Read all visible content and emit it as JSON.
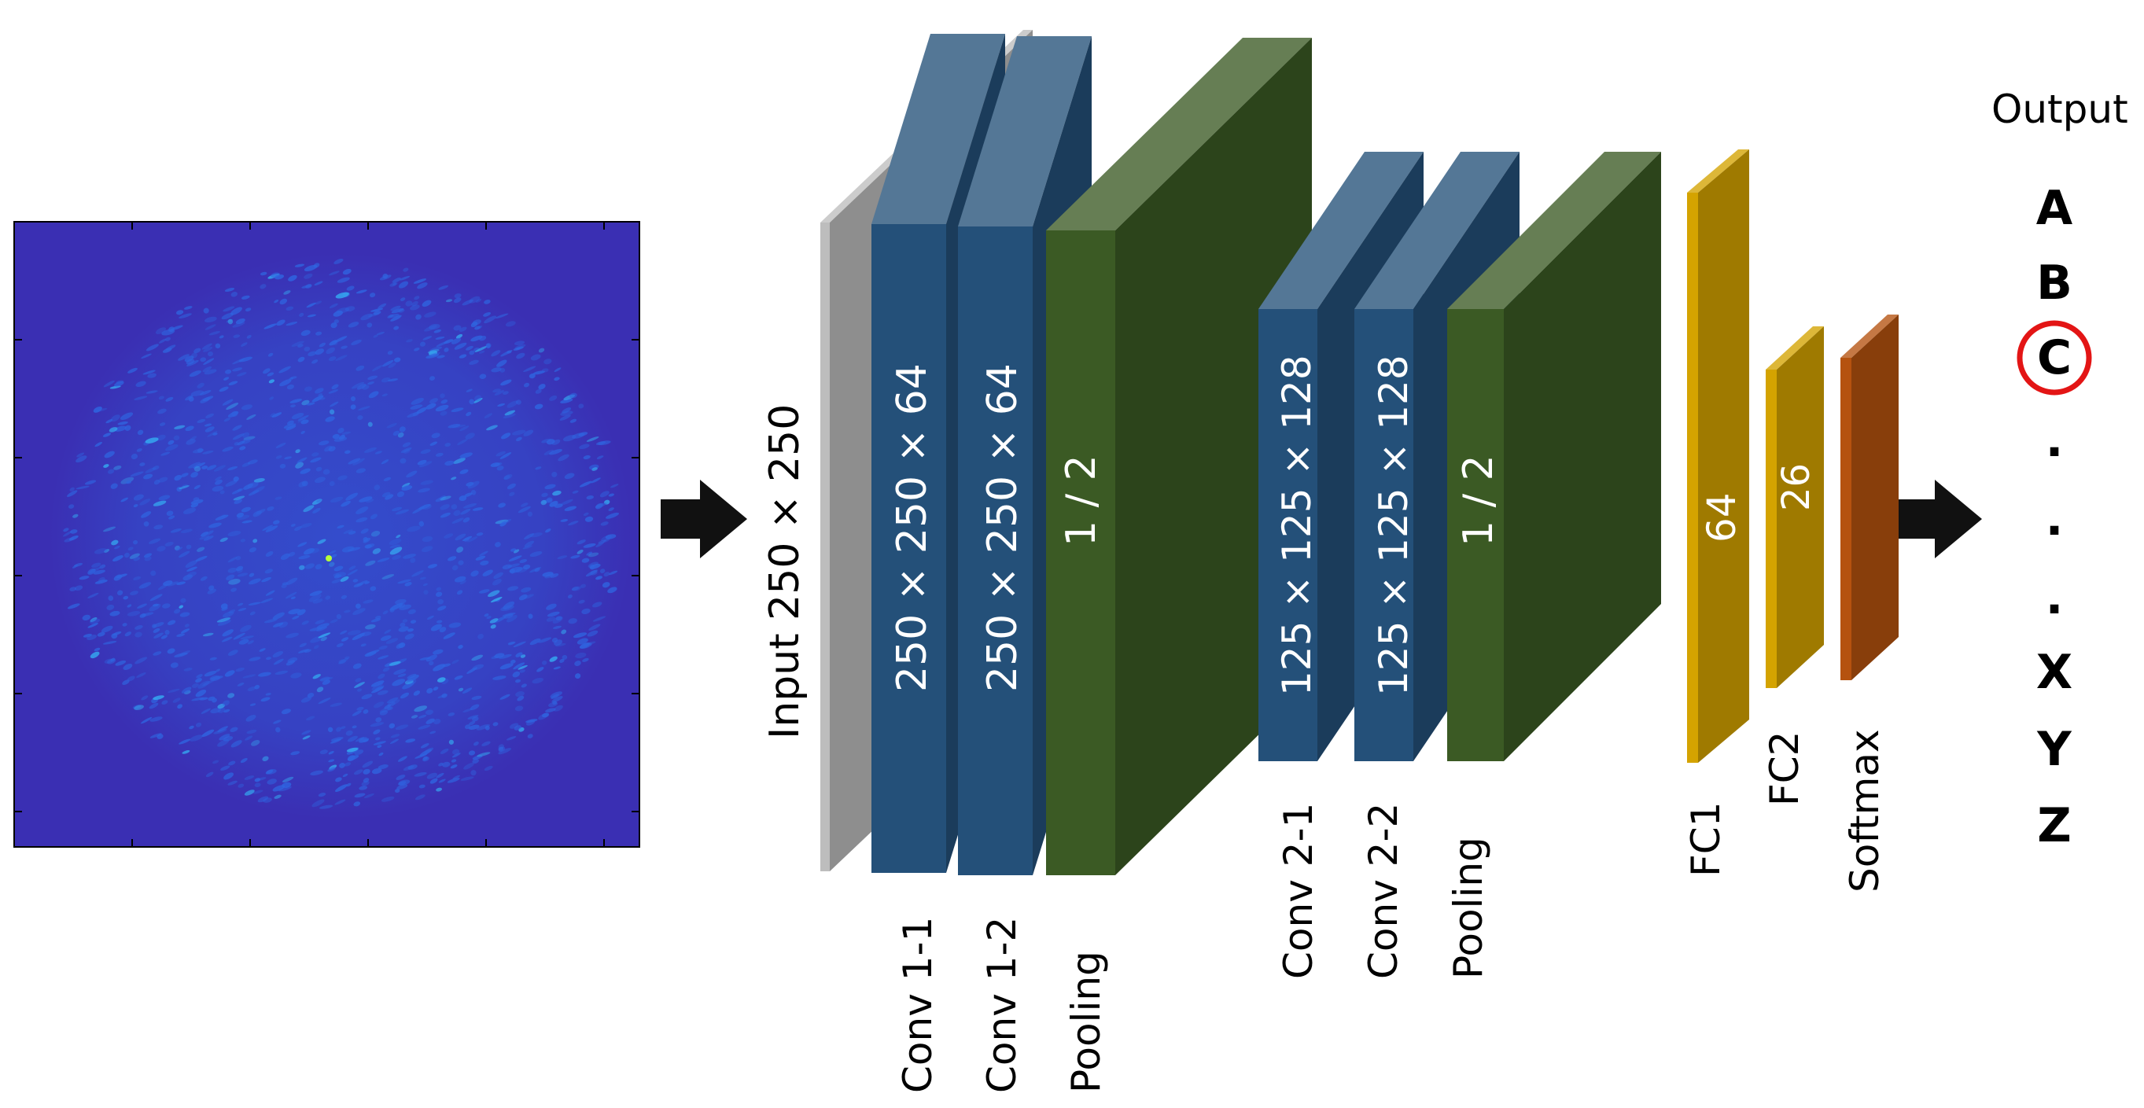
{
  "input_image": {
    "colors": {
      "background": "#3a2fb3",
      "frame": "#000000",
      "speckle": "#2f64e0",
      "hotspot": "#b6ff3a"
    }
  },
  "layers": [
    {
      "id": "input",
      "block_text": "",
      "label": "Input 250 × 250",
      "color": "#bdbdbd"
    },
    {
      "id": "conv1-1",
      "block_text": "250 × 250 × 64",
      "label": "Conv 1-1",
      "color": "#245079"
    },
    {
      "id": "conv1-2",
      "block_text": "250 × 250 × 64",
      "label": "Conv 1-2",
      "color": "#245079"
    },
    {
      "id": "pool1",
      "block_text": "1 / 2",
      "label": "Pooling",
      "color": "#3b5a24"
    },
    {
      "id": "conv2-1",
      "block_text": "125 × 125 × 128",
      "label": "Conv 2-1",
      "color": "#245079"
    },
    {
      "id": "conv2-2",
      "block_text": "125 × 125 × 128",
      "label": "Conv 2-2",
      "color": "#245079"
    },
    {
      "id": "pool2",
      "block_text": "1 / 2",
      "label": "Pooling",
      "color": "#3b5a24"
    },
    {
      "id": "fc1",
      "block_text": "64",
      "label": "FC1",
      "color": "#d4a300"
    },
    {
      "id": "fc2",
      "block_text": "26",
      "label": "FC2",
      "color": "#d4a300"
    },
    {
      "id": "softmax",
      "block_text": "",
      "label": "Softmax",
      "color": "#b5520f"
    }
  ],
  "output": {
    "title": "Output",
    "letters": [
      "A",
      "B",
      "C",
      ".",
      ".",
      ".",
      "X",
      "Y",
      "Z"
    ],
    "selected": "C",
    "highlight_color": "#e31515"
  },
  "colors": {
    "arrow": "#111111"
  }
}
